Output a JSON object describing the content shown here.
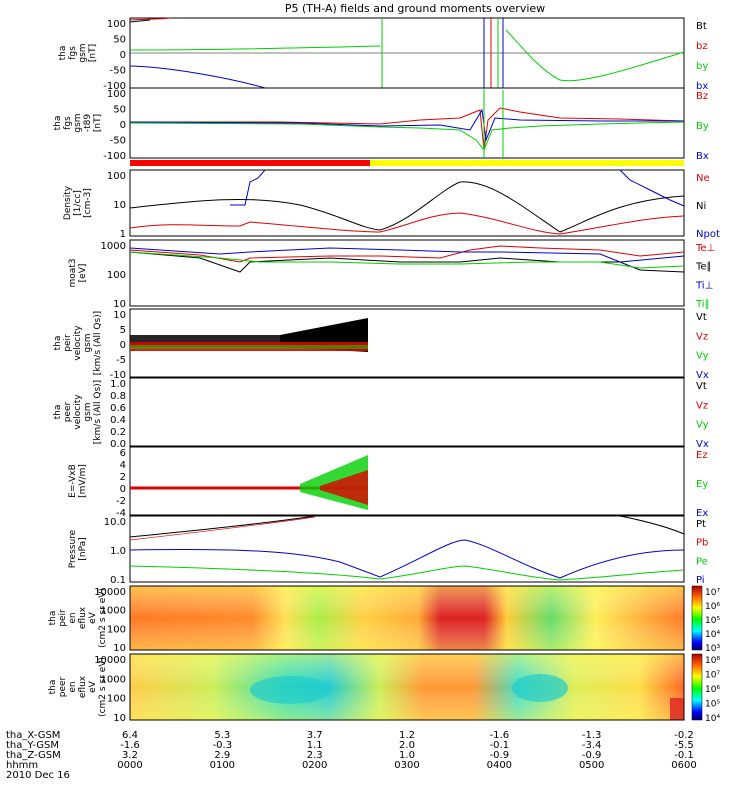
{
  "title": "P5 (TH-A) fields and ground moments overview",
  "date_label": "2010 Dec 16",
  "colors": {
    "black": "#000000",
    "red": "#e00000",
    "green": "#00d000",
    "blue": "#0000d0",
    "bar_red": "#ff0000",
    "bar_yellow": "#ffff00"
  },
  "x_axis": {
    "ticks": [
      "0000",
      "0100",
      "0200",
      "0300",
      "0400",
      "0500",
      "0600"
    ],
    "rows": [
      {
        "label": "tha_X-GSM",
        "values": [
          "6.4",
          "5.3",
          "3.7",
          "1.2",
          "-1.6",
          "-1.3",
          "-0.2"
        ]
      },
      {
        "label": "tha_Y-GSM",
        "values": [
          "-1.6",
          "-0.3",
          "1.1",
          "2.0",
          "-0.1",
          "-3.4",
          "-5.5"
        ]
      },
      {
        "label": "tha_Z-GSM",
        "values": [
          "3.2",
          "2.9",
          "2.3",
          "1.0",
          "-0.9",
          "-0.9",
          "-0.1"
        ]
      },
      {
        "label": "hhmm",
        "values": [
          "0000",
          "0100",
          "0200",
          "0300",
          "0400",
          "0500",
          "0600"
        ]
      }
    ]
  },
  "chart_data": [
    {
      "type": "line",
      "id": "fgs",
      "ylabel": [
        "tha",
        "fgs",
        "gsm",
        "[nT]"
      ],
      "yticks": [
        "100",
        "50",
        "0",
        "-50",
        "-100"
      ],
      "ylim": [
        -100,
        100
      ],
      "series": [
        {
          "name": "Bt",
          "color": "black"
        },
        {
          "name": "bz",
          "color": "red"
        },
        {
          "name": "by",
          "color": "green"
        },
        {
          "name": "bx",
          "color": "blue"
        }
      ]
    },
    {
      "type": "line",
      "id": "fgl",
      "ylabel": [
        "tha",
        "fgs",
        "gsm",
        "-t89",
        "[nT]"
      ],
      "yticks": [
        "100",
        "50",
        "0",
        "-50",
        "-100"
      ],
      "ylim": [
        -125,
        125
      ],
      "series": [
        {
          "name": "Bz",
          "color": "red"
        },
        {
          "name": "By",
          "color": "green"
        },
        {
          "name": "Bx",
          "color": "blue"
        }
      ]
    },
    {
      "type": "line",
      "id": "density",
      "ylabel": [
        "Density",
        "[1/cc]",
        "[cm-3]"
      ],
      "yticks": [
        "100",
        "10",
        "1"
      ],
      "scale": "log",
      "series": [
        {
          "name": "Ne",
          "color": "red"
        },
        {
          "name": "Ni",
          "color": "black"
        },
        {
          "name": "Npot",
          "color": "blue"
        }
      ]
    },
    {
      "type": "line",
      "id": "temp",
      "ylabel": [
        "moat3",
        "[eV]"
      ],
      "yticks": [
        "1000",
        "100",
        "10"
      ],
      "scale": "log",
      "series": [
        {
          "name": "Te⊥",
          "color": "red"
        },
        {
          "name": "Te∥",
          "color": "black"
        },
        {
          "name": "Ti⊥",
          "color": "blue"
        },
        {
          "name": "Ti∥",
          "color": "green"
        }
      ]
    },
    {
      "type": "line",
      "id": "peirvel",
      "ylabel": [
        "tha",
        "peir",
        "velocity",
        "gsm",
        "[km/s (All Qs)]"
      ],
      "yticks": [
        "10",
        "5",
        "0",
        "-5",
        "-10"
      ],
      "ylim": [
        -10,
        10
      ],
      "series": [
        {
          "name": "Vt",
          "color": "black"
        },
        {
          "name": "Vz",
          "color": "red"
        },
        {
          "name": "Vy",
          "color": "green"
        },
        {
          "name": "Vx",
          "color": "blue"
        }
      ]
    },
    {
      "type": "line",
      "id": "peervel",
      "ylabel": [
        "tha",
        "peer",
        "velocity",
        "gsm",
        "[km/s (All Qs)]"
      ],
      "yticks": [
        "1.0",
        "0.8",
        "0.6",
        "0.4",
        "0.2",
        "0.0"
      ],
      "ylim": [
        0,
        1
      ],
      "series": [
        {
          "name": "Vt",
          "color": "black"
        },
        {
          "name": "Vz",
          "color": "red"
        },
        {
          "name": "Vy",
          "color": "green"
        },
        {
          "name": "Vx",
          "color": "blue"
        }
      ]
    },
    {
      "type": "line",
      "id": "efield",
      "ylabel": [
        "E=-VxB",
        "[mV/m]"
      ],
      "yticks": [
        "6",
        "4",
        "2",
        "0",
        "-2",
        "-4"
      ],
      "ylim": [
        -4,
        6
      ],
      "series": [
        {
          "name": "Ez",
          "color": "red"
        },
        {
          "name": "Ey",
          "color": "green"
        },
        {
          "name": "Ex",
          "color": "blue"
        }
      ]
    },
    {
      "type": "line",
      "id": "pressure",
      "ylabel": [
        "Pressure",
        "[nPa]"
      ],
      "yticks": [
        "10.0",
        "1.0",
        "0.1"
      ],
      "scale": "log",
      "series": [
        {
          "name": "Pt",
          "color": "black"
        },
        {
          "name": "Pb",
          "color": "red"
        },
        {
          "name": "Pe",
          "color": "green"
        },
        {
          "name": "Pi",
          "color": "blue"
        }
      ]
    },
    {
      "type": "heatmap",
      "id": "peirspec",
      "ylabel": [
        "tha",
        "peir",
        "en",
        "eflux",
        "eV",
        "(cm2 s sr eV)"
      ],
      "yticks": [
        "10000",
        "1000",
        "100",
        "10"
      ],
      "scale": "log",
      "colorbar_ticks": [
        "10⁷",
        "10⁶",
        "10⁵",
        "10⁴",
        "10³"
      ]
    },
    {
      "type": "heatmap",
      "id": "peerspec",
      "ylabel": [
        "tha",
        "peer",
        "en",
        "eflux",
        "eV",
        "(cm2 s sr eV)"
      ],
      "yticks": [
        "10000",
        "1000",
        "100",
        "10"
      ],
      "scale": "log",
      "colorbar_ticks": [
        "10⁸",
        "10⁷",
        "10⁶",
        "10⁵",
        "10⁴"
      ]
    }
  ]
}
